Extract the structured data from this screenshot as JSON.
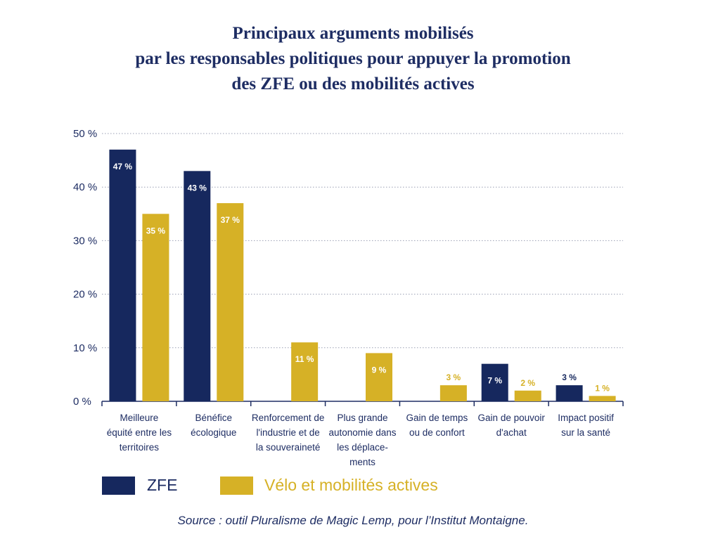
{
  "chart_data": {
    "type": "bar",
    "title": [
      "Principaux arguments mobilisés",
      "par les responsables politiques pour appuyer la promotion",
      "des ZFE ou des mobilités actives"
    ],
    "ylim": [
      0,
      50
    ],
    "y_ticks": [
      0,
      10,
      20,
      30,
      40,
      50
    ],
    "y_tick_labels": [
      "0 %",
      "10 %",
      "20 %",
      "30 %",
      "40 %",
      "50 %"
    ],
    "categories": [
      [
        "Meilleure",
        "équité entre les",
        "territoires"
      ],
      [
        "Bénéfice",
        "écologique"
      ],
      [
        "Renforcement de",
        "l'industrie et de",
        "la souveraineté"
      ],
      [
        "Plus grande",
        "autonomie dans",
        "les déplace-",
        "ments"
      ],
      [
        "Gain de temps",
        "ou de confort"
      ],
      [
        "Gain de  pouvoir",
        "d'achat"
      ],
      [
        "Impact positif",
        "sur la santé"
      ]
    ],
    "series": [
      {
        "name": "ZFE",
        "color": "#16285e",
        "values": [
          47,
          43,
          null,
          null,
          null,
          7,
          3
        ],
        "labels": [
          "47 %",
          "43 %",
          "",
          "",
          "",
          "7 %",
          "3 %"
        ]
      },
      {
        "name": "Vélo et mobilités actives",
        "color": "#d6b126",
        "values": [
          35,
          37,
          11,
          9,
          3,
          2,
          1
        ],
        "labels": [
          "35 %",
          "37 %",
          "11 %",
          "9 %",
          "3 %",
          "2 %",
          "1 %"
        ]
      }
    ],
    "source": "Source : outil Pluralisme de Magic Lemp, pour l’Institut Montaigne."
  }
}
